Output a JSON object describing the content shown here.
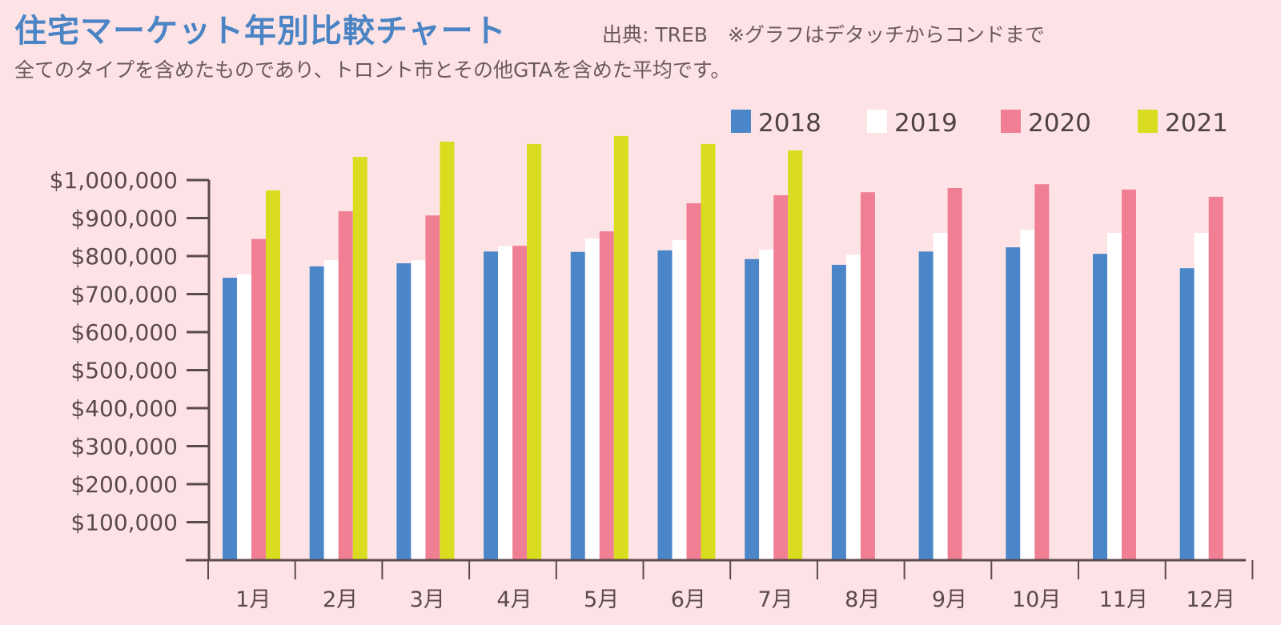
{
  "header": {
    "title": "住宅マーケット年別比較チャート",
    "source_note": "出典: TREB　※グラフはデタッチからコンドまで",
    "subtitle": "全てのタイプを含めたものであり、トロント市とその他GTAを含めた平均です。"
  },
  "chart_data": {
    "type": "bar",
    "title": "住宅マーケット年別比較チャート",
    "xlabel": "",
    "ylabel": "",
    "ylim": [
      0,
      1000000
    ],
    "yticks": [
      100000,
      200000,
      300000,
      400000,
      500000,
      600000,
      700000,
      800000,
      900000,
      1000000
    ],
    "ytick_labels": [
      "$100,000",
      "$200,000",
      "$300,000",
      "$400,000",
      "$500,000",
      "$600,000",
      "$700,000",
      "$800,000",
      "$900,000",
      "$1,000,000"
    ],
    "grid": false,
    "legend_position": "top-right",
    "categories": [
      "1月",
      "2月",
      "3月",
      "4月",
      "5月",
      "6月",
      "7月",
      "8月",
      "9月",
      "10月",
      "11月",
      "12月"
    ],
    "series": [
      {
        "name": "2018",
        "color": "#4a86c8",
        "values": [
          743000,
          773000,
          781000,
          812000,
          811000,
          815000,
          792000,
          777000,
          812000,
          823000,
          806000,
          768000
        ]
      },
      {
        "name": "2019",
        "color": "#ffffff",
        "values": [
          752000,
          790000,
          789000,
          827000,
          846000,
          842000,
          817000,
          804000,
          861000,
          869000,
          861000,
          861000
        ]
      },
      {
        "name": "2020",
        "color": "#f07f94",
        "values": [
          845000,
          918000,
          907000,
          827000,
          865000,
          939000,
          960000,
          968000,
          979000,
          989000,
          975000,
          956000
        ]
      },
      {
        "name": "2021",
        "color": "#d9dc1f",
        "values": [
          973000,
          1061000,
          1101000,
          1095000,
          1116000,
          1095000,
          1078000,
          null,
          null,
          null,
          null,
          null
        ]
      }
    ]
  }
}
